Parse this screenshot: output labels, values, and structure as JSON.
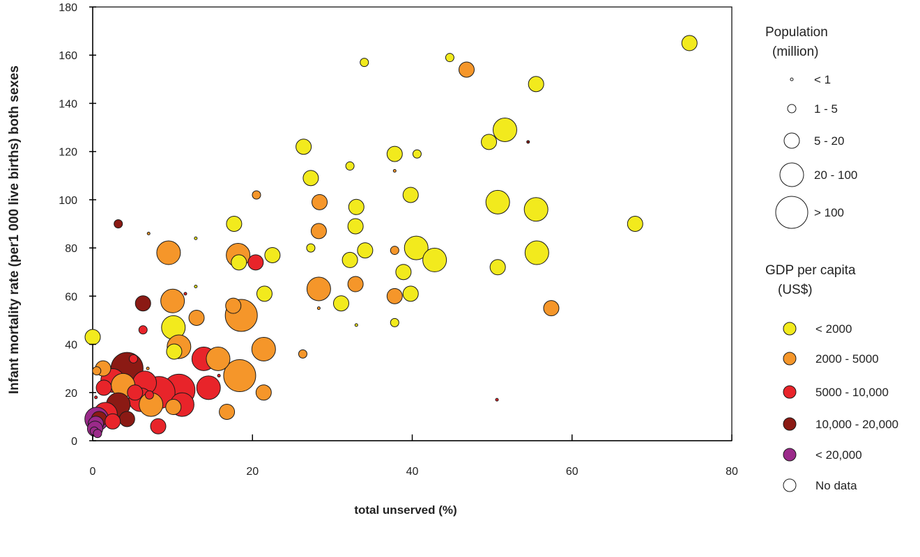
{
  "chart_data": {
    "type": "scatter",
    "title": "",
    "xlabel": "total unserved (%)",
    "ylabel": "Infant mortality rate (per1 000 live births) both sexes",
    "xlim": [
      0,
      80
    ],
    "ylim": [
      0,
      180
    ],
    "x_ticks": [
      0,
      20,
      40,
      60,
      80
    ],
    "y_ticks": [
      0,
      20,
      40,
      60,
      80,
      100,
      120,
      140,
      160,
      180
    ],
    "x_tick_labels": [
      "0",
      "20",
      "40",
      "60",
      "80"
    ],
    "y_tick_labels": [
      "0",
      "20",
      "40",
      "60",
      "80",
      "100",
      "120",
      "140",
      "160",
      "180"
    ],
    "grid": false,
    "legend_position": "right",
    "size_legend": {
      "title_line1": "Population",
      "title_line2": "(million)",
      "items": [
        {
          "label": "< 1",
          "size_class": 0
        },
        {
          "label": "1 - 5",
          "size_class": 1
        },
        {
          "label": "5 - 20",
          "size_class": 2
        },
        {
          "label": "20 - 100",
          "size_class": 3
        },
        {
          "label": "> 100",
          "size_class": 4
        }
      ]
    },
    "color_legend": {
      "title_line1": "GDP per capita",
      "title_line2": "(US$)",
      "items": [
        {
          "label": "< 2000",
          "color": "#f2ea1d"
        },
        {
          "label": "2000 - 5000",
          "color": "#f5962a"
        },
        {
          "label": "5000 - 10,000",
          "color": "#e8242a"
        },
        {
          "label": "10,000 - 20,000",
          "color": "#8b1a14"
        },
        {
          "label": "< 20,000",
          "color": "#9b2a8a"
        },
        {
          "label": "No data",
          "color": "#ffffff"
        }
      ]
    },
    "points": [
      {
        "x": 74.7,
        "y": 165,
        "gdp": "< 2000",
        "pop": 2
      },
      {
        "x": 44.7,
        "y": 159,
        "gdp": "< 2000",
        "pop": 1
      },
      {
        "x": 34.0,
        "y": 157,
        "gdp": "< 2000",
        "pop": 1
      },
      {
        "x": 46.8,
        "y": 154,
        "gdp": "2000 - 5000",
        "pop": 2
      },
      {
        "x": 55.5,
        "y": 148,
        "gdp": "< 2000",
        "pop": 2
      },
      {
        "x": 51.6,
        "y": 129,
        "gdp": "< 2000",
        "pop": 3
      },
      {
        "x": 54.5,
        "y": 124,
        "gdp": "10,000 - 20,000",
        "pop": 0
      },
      {
        "x": 49.6,
        "y": 124,
        "gdp": "< 2000",
        "pop": 2
      },
      {
        "x": 26.4,
        "y": 122,
        "gdp": "< 2000",
        "pop": 2
      },
      {
        "x": 37.8,
        "y": 119,
        "gdp": "< 2000",
        "pop": 2
      },
      {
        "x": 40.6,
        "y": 119,
        "gdp": "< 2000",
        "pop": 1
      },
      {
        "x": 32.2,
        "y": 114,
        "gdp": "< 2000",
        "pop": 1
      },
      {
        "x": 37.8,
        "y": 112,
        "gdp": "2000 - 5000",
        "pop": 0
      },
      {
        "x": 27.3,
        "y": 109,
        "gdp": "< 2000",
        "pop": 2
      },
      {
        "x": 20.5,
        "y": 102,
        "gdp": "2000 - 5000",
        "pop": 1
      },
      {
        "x": 39.8,
        "y": 102,
        "gdp": "< 2000",
        "pop": 2
      },
      {
        "x": 50.7,
        "y": 99,
        "gdp": "< 2000",
        "pop": 3
      },
      {
        "x": 28.4,
        "y": 99,
        "gdp": "2000 - 5000",
        "pop": 2
      },
      {
        "x": 33.0,
        "y": 97,
        "gdp": "< 2000",
        "pop": 2
      },
      {
        "x": 55.5,
        "y": 96,
        "gdp": "< 2000",
        "pop": 3
      },
      {
        "x": 3.2,
        "y": 90,
        "gdp": "10,000 - 20,000",
        "pop": 1
      },
      {
        "x": 17.7,
        "y": 90,
        "gdp": "< 2000",
        "pop": 2
      },
      {
        "x": 67.9,
        "y": 90,
        "gdp": "< 2000",
        "pop": 2
      },
      {
        "x": 32.9,
        "y": 89,
        "gdp": "< 2000",
        "pop": 2
      },
      {
        "x": 28.3,
        "y": 87,
        "gdp": "2000 - 5000",
        "pop": 2
      },
      {
        "x": 7.0,
        "y": 86,
        "gdp": "2000 - 5000",
        "pop": 0
      },
      {
        "x": 12.9,
        "y": 84,
        "gdp": "< 2000",
        "pop": 0
      },
      {
        "x": 27.3,
        "y": 80,
        "gdp": "< 2000",
        "pop": 1
      },
      {
        "x": 40.5,
        "y": 80,
        "gdp": "< 2000",
        "pop": 3
      },
      {
        "x": 37.8,
        "y": 79,
        "gdp": "2000 - 5000",
        "pop": 1
      },
      {
        "x": 34.1,
        "y": 79,
        "gdp": "< 2000",
        "pop": 2
      },
      {
        "x": 9.5,
        "y": 78,
        "gdp": "2000 - 5000",
        "pop": 3
      },
      {
        "x": 55.6,
        "y": 78,
        "gdp": "< 2000",
        "pop": 3
      },
      {
        "x": 22.5,
        "y": 77,
        "gdp": "< 2000",
        "pop": 2
      },
      {
        "x": 18.2,
        "y": 77,
        "gdp": "2000 - 5000",
        "pop": 3
      },
      {
        "x": 32.2,
        "y": 75,
        "gdp": "< 2000",
        "pop": 2
      },
      {
        "x": 42.8,
        "y": 75,
        "gdp": "< 2000",
        "pop": 3
      },
      {
        "x": 18.3,
        "y": 74,
        "gdp": "< 2000",
        "pop": 2
      },
      {
        "x": 20.4,
        "y": 74,
        "gdp": "5000 - 10,000",
        "pop": 2
      },
      {
        "x": 50.7,
        "y": 72,
        "gdp": "< 2000",
        "pop": 2
      },
      {
        "x": 38.9,
        "y": 70,
        "gdp": "< 2000",
        "pop": 2
      },
      {
        "x": 32.9,
        "y": 65,
        "gdp": "2000 - 5000",
        "pop": 2
      },
      {
        "x": 12.9,
        "y": 64,
        "gdp": "< 2000",
        "pop": 0
      },
      {
        "x": 28.3,
        "y": 63,
        "gdp": "2000 - 5000",
        "pop": 3
      },
      {
        "x": 21.5,
        "y": 61,
        "gdp": "< 2000",
        "pop": 2
      },
      {
        "x": 11.6,
        "y": 61,
        "gdp": "5000 - 10,000",
        "pop": 0
      },
      {
        "x": 39.8,
        "y": 61,
        "gdp": "< 2000",
        "pop": 2
      },
      {
        "x": 37.8,
        "y": 60,
        "gdp": "2000 - 5000",
        "pop": 2
      },
      {
        "x": 10.0,
        "y": 58,
        "gdp": "2000 - 5000",
        "pop": 3
      },
      {
        "x": 6.3,
        "y": 57,
        "gdp": "10,000 - 20,000",
        "pop": 2
      },
      {
        "x": 31.1,
        "y": 57,
        "gdp": "< 2000",
        "pop": 2
      },
      {
        "x": 17.6,
        "y": 56,
        "gdp": "2000 - 5000",
        "pop": 2
      },
      {
        "x": 28.3,
        "y": 55,
        "gdp": "2000 - 5000",
        "pop": 0
      },
      {
        "x": 57.4,
        "y": 55,
        "gdp": "2000 - 5000",
        "pop": 2
      },
      {
        "x": 18.6,
        "y": 52,
        "gdp": "2000 - 5000",
        "pop": 4
      },
      {
        "x": 13.0,
        "y": 51,
        "gdp": "2000 - 5000",
        "pop": 2
      },
      {
        "x": 37.8,
        "y": 49,
        "gdp": "< 2000",
        "pop": 1
      },
      {
        "x": 33.0,
        "y": 48,
        "gdp": "< 2000",
        "pop": 0
      },
      {
        "x": 10.1,
        "y": 47,
        "gdp": "< 2000",
        "pop": 3
      },
      {
        "x": 6.3,
        "y": 46,
        "gdp": "5000 - 10,000",
        "pop": 1
      },
      {
        "x": 0.0,
        "y": 43,
        "gdp": "< 2000",
        "pop": 2
      },
      {
        "x": 10.8,
        "y": 39,
        "gdp": "2000 - 5000",
        "pop": 3
      },
      {
        "x": 21.4,
        "y": 38,
        "gdp": "2000 - 5000",
        "pop": 3
      },
      {
        "x": 10.2,
        "y": 37,
        "gdp": "< 2000",
        "pop": 2
      },
      {
        "x": 26.3,
        "y": 36,
        "gdp": "2000 - 5000",
        "pop": 1
      },
      {
        "x": 13.9,
        "y": 34,
        "gdp": "5000 - 10,000",
        "pop": 3
      },
      {
        "x": 15.7,
        "y": 34,
        "gdp": "2000 - 5000",
        "pop": 3
      },
      {
        "x": 5.1,
        "y": 34,
        "gdp": "5000 - 10,000",
        "pop": 1
      },
      {
        "x": 1.3,
        "y": 30,
        "gdp": "2000 - 5000",
        "pop": 2
      },
      {
        "x": 4.3,
        "y": 30,
        "gdp": "10,000 - 20,000",
        "pop": 4
      },
      {
        "x": 6.9,
        "y": 30,
        "gdp": "2000 - 5000",
        "pop": 0
      },
      {
        "x": 0.5,
        "y": 29,
        "gdp": "2000 - 5000",
        "pop": 1
      },
      {
        "x": 18.4,
        "y": 27,
        "gdp": "2000 - 5000",
        "pop": 4
      },
      {
        "x": 15.8,
        "y": 27,
        "gdp": "5000 - 10,000",
        "pop": 0
      },
      {
        "x": 2.5,
        "y": 25,
        "gdp": "5000 - 10,000",
        "pop": 3
      },
      {
        "x": 6.5,
        "y": 24,
        "gdp": "5000 - 10,000",
        "pop": 3
      },
      {
        "x": 3.8,
        "y": 23,
        "gdp": "2000 - 5000",
        "pop": 3
      },
      {
        "x": 1.4,
        "y": 22,
        "gdp": "5000 - 10,000",
        "pop": 2
      },
      {
        "x": 10.8,
        "y": 21,
        "gdp": "5000 - 10,000",
        "pop": 4
      },
      {
        "x": 14.5,
        "y": 22,
        "gdp": "5000 - 10,000",
        "pop": 3
      },
      {
        "x": 8.3,
        "y": 20,
        "gdp": "5000 - 10,000",
        "pop": 4
      },
      {
        "x": 5.3,
        "y": 20,
        "gdp": "5000 - 10,000",
        "pop": 2
      },
      {
        "x": 21.4,
        "y": 20,
        "gdp": "2000 - 5000",
        "pop": 2
      },
      {
        "x": 7.1,
        "y": 19,
        "gdp": "5000 - 10,000",
        "pop": 1
      },
      {
        "x": 0.4,
        "y": 18,
        "gdp": "5000 - 10,000",
        "pop": 0
      },
      {
        "x": 6.0,
        "y": 17,
        "gdp": "5000 - 10,000",
        "pop": 3
      },
      {
        "x": 50.6,
        "y": 17,
        "gdp": "5000 - 10,000",
        "pop": 0
      },
      {
        "x": 7.3,
        "y": 15,
        "gdp": "2000 - 5000",
        "pop": 3
      },
      {
        "x": 3.2,
        "y": 15,
        "gdp": "10,000 - 20,000",
        "pop": 3
      },
      {
        "x": 11.2,
        "y": 15,
        "gdp": "5000 - 10,000",
        "pop": 3
      },
      {
        "x": 10.1,
        "y": 14,
        "gdp": "2000 - 5000",
        "pop": 2
      },
      {
        "x": 16.8,
        "y": 12,
        "gdp": "2000 - 5000",
        "pop": 2
      },
      {
        "x": 1.6,
        "y": 11,
        "gdp": "5000 - 10,000",
        "pop": 3
      },
      {
        "x": 0.8,
        "y": 9,
        "gdp": "10,000 - 20,000",
        "pop": 2
      },
      {
        "x": 4.3,
        "y": 9,
        "gdp": "10,000 - 20,000",
        "pop": 2
      },
      {
        "x": 0.5,
        "y": 9,
        "gdp": "< 20,000",
        "pop": 3
      },
      {
        "x": 2.5,
        "y": 8,
        "gdp": "5000 - 10,000",
        "pop": 2
      },
      {
        "x": 0.4,
        "y": 7,
        "gdp": "< 20,000",
        "pop": 2
      },
      {
        "x": 8.2,
        "y": 6,
        "gdp": "5000 - 10,000",
        "pop": 2
      },
      {
        "x": 0.3,
        "y": 5,
        "gdp": "< 20,000",
        "pop": 2
      },
      {
        "x": 0.2,
        "y": 4,
        "gdp": "< 20,000",
        "pop": 1
      },
      {
        "x": 0.6,
        "y": 3,
        "gdp": "< 20,000",
        "pop": 1
      }
    ]
  }
}
